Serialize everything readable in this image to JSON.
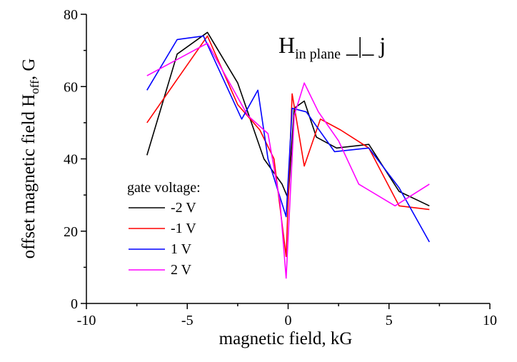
{
  "chart_data": {
    "type": "line",
    "xlabel": "magnetic field, kG",
    "ylabel": {
      "prefix": "offset magnetic field H",
      "subscript": "off",
      "suffix": ", G"
    },
    "xlim": [
      -10,
      10
    ],
    "ylim": [
      0,
      80
    ],
    "xticks": [
      -10,
      -5,
      0,
      5,
      10
    ],
    "yticks": [
      0,
      20,
      40,
      60,
      80
    ],
    "grid": false,
    "annotation": {
      "main": "H",
      "subscript": "in plane",
      "symbol": "_|_",
      "suffix": "j"
    },
    "legend": {
      "title": "gate voltage:",
      "position": "bottom-left"
    },
    "series": [
      {
        "name": "-2 V",
        "color": "#000000",
        "x": [
          -7.0,
          -5.5,
          -4.0,
          -2.5,
          -1.2,
          -0.3,
          0.0,
          0.3,
          0.8,
          1.4,
          2.4,
          4.0,
          5.5,
          7.0
        ],
        "y": [
          41,
          69,
          75,
          61,
          40,
          33,
          29,
          54,
          56,
          46,
          43,
          44,
          31,
          27
        ]
      },
      {
        "name": "-1 V",
        "color": "#ff0000",
        "x": [
          -7.0,
          -5.5,
          -4.0,
          -2.5,
          -1.4,
          -0.7,
          -0.1,
          0.2,
          0.8,
          1.6,
          2.6,
          4.0,
          5.5,
          7.0
        ],
        "y": [
          50,
          62,
          74,
          55,
          48,
          40,
          13,
          58,
          38,
          51,
          48,
          43,
          27,
          26
        ]
      },
      {
        "name": "1 V",
        "color": "#0000ff",
        "x": [
          -7.0,
          -5.5,
          -4.2,
          -2.3,
          -1.5,
          -1.0,
          -0.1,
          0.2,
          0.9,
          2.3,
          4.0,
          5.5,
          7.0
        ],
        "y": [
          59,
          73,
          74,
          51,
          59,
          40,
          24,
          54,
          53,
          42,
          43,
          32,
          17
        ]
      },
      {
        "name": "2 V",
        "color": "#ff00ff",
        "x": [
          -7.0,
          -4.0,
          -2.0,
          -1.0,
          -0.4,
          -0.1,
          0.3,
          0.8,
          1.5,
          2.5,
          3.5,
          5.3,
          7.0
        ],
        "y": [
          63,
          72,
          52,
          47,
          28,
          7,
          52,
          61,
          53,
          45,
          33,
          27,
          33
        ]
      }
    ]
  }
}
